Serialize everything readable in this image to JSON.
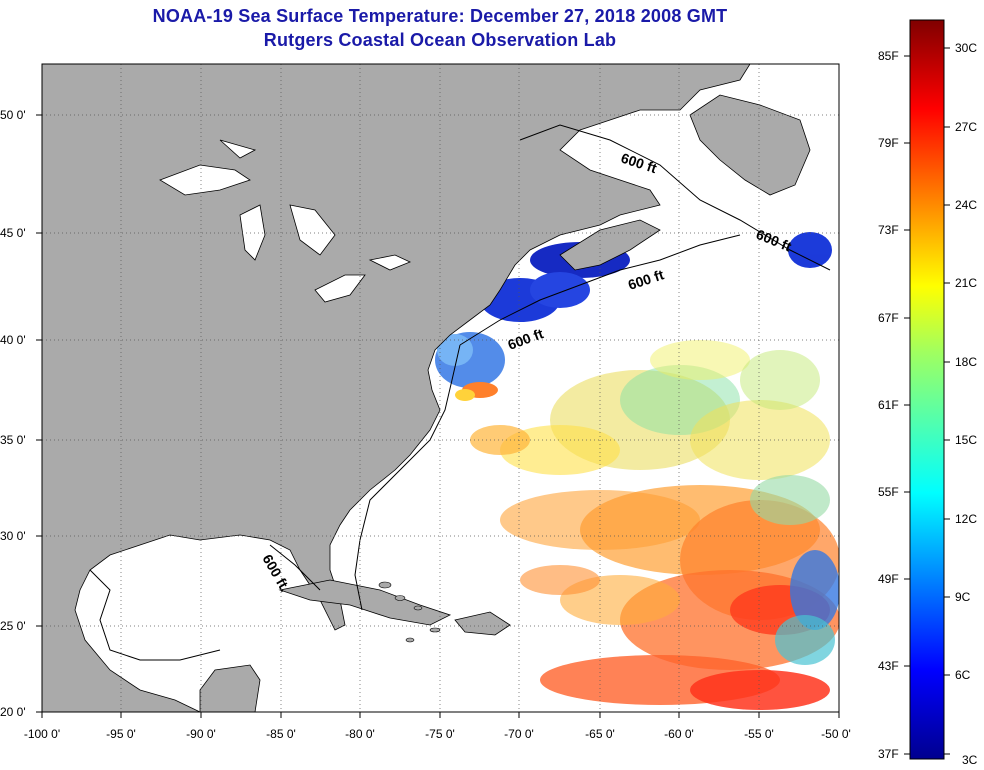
{
  "title": "NOAA-19 Sea Surface Temperature:  December 27, 2018 2008 GMT",
  "subtitle": "Rutgers Coastal Ocean Observation Lab",
  "axes": {
    "longitude_labels": [
      "-100 0'",
      "-95 0'",
      "-90 0'",
      "-85 0'",
      "-80 0'",
      "-75 0'",
      "-70 0'",
      "-65 0'",
      "-60 0'",
      "-55 0'",
      "-50 0'"
    ],
    "latitude_labels": [
      "50 0'",
      "45 0'",
      "40 0'",
      "35 0'",
      "30 0'",
      "25 0'",
      "20 0'"
    ]
  },
  "contour_labels": [
    "600 ft",
    "600 ft",
    "600 ft",
    "600 ft",
    "600 ft."
  ],
  "colorbar": {
    "fahrenheit": [
      "85F",
      "79F",
      "73F",
      "67F",
      "61F",
      "55F",
      "49F",
      "43F",
      "37F"
    ],
    "celsius": [
      "30C",
      "27C",
      "24C",
      "21C",
      "18C",
      "15C",
      "12C",
      "9C",
      "6C",
      "3C"
    ]
  },
  "colors": {
    "title": "#1a1aa8",
    "land": "#aaaaaa",
    "ocean": "#ffffff"
  }
}
